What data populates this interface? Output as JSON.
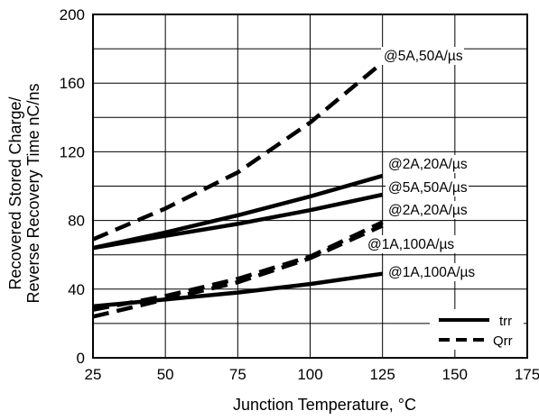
{
  "chart_data": {
    "type": "line",
    "xlabel": "Junction Temperature, °C",
    "ylabel_lines": [
      "Recovered Stored Charge/",
      "Reverse Recovery Time nC/ns"
    ],
    "xlim": [
      25,
      175
    ],
    "ylim": [
      0,
      200
    ],
    "x_ticks": [
      25,
      50,
      75,
      100,
      125,
      150,
      175
    ],
    "y_ticks": [
      0,
      40,
      80,
      120,
      160,
      200
    ],
    "x_tick_labels": [
      "25",
      "50",
      "75",
      "100",
      "125",
      "150",
      "175"
    ],
    "y_tick_labels": [
      "0",
      "40",
      "80",
      "120",
      "160",
      "200"
    ],
    "grid": true,
    "legend_position": "bottom-right",
    "legend": [
      {
        "label": "trr",
        "style": "solid"
      },
      {
        "label": "Qrr",
        "style": "dashed"
      }
    ],
    "series": [
      {
        "name": "Qrr @5A,50A/µs",
        "style": "dashed",
        "annotation": "@5A,50A/µs",
        "x": [
          25,
          50,
          75,
          100,
          125
        ],
        "y": [
          69,
          87,
          108,
          137,
          172
        ]
      },
      {
        "name": "trr @2A,20A/µs",
        "style": "solid",
        "annotation": "@2A,20A/µs",
        "x": [
          25,
          50,
          75,
          100,
          125
        ],
        "y": [
          64,
          73,
          83,
          94,
          106
        ]
      },
      {
        "name": "trr @5A,50A/µs",
        "style": "solid",
        "annotation": "@5A,50A/µs",
        "x": [
          25,
          50,
          75,
          100,
          125
        ],
        "y": [
          64,
          71,
          78,
          86,
          95
        ]
      },
      {
        "name": "Qrr @2A,20A/µs",
        "style": "dashed",
        "annotation": "@2A,20A/µs",
        "x": [
          25,
          50,
          75,
          100,
          125
        ],
        "y": [
          28,
          36,
          46,
          59,
          79
        ]
      },
      {
        "name": "Qrr @1A,100A/µs",
        "style": "dashed",
        "annotation": "@1A,100A/µs",
        "x": [
          25,
          50,
          75,
          100,
          125
        ],
        "y": [
          24,
          34,
          44,
          58,
          77
        ]
      },
      {
        "name": "trr @1A,100A/µs",
        "style": "solid",
        "annotation": "@1A,100A/µs",
        "x": [
          25,
          50,
          75,
          100,
          125
        ],
        "y": [
          30,
          34,
          38,
          43,
          49
        ]
      }
    ]
  }
}
